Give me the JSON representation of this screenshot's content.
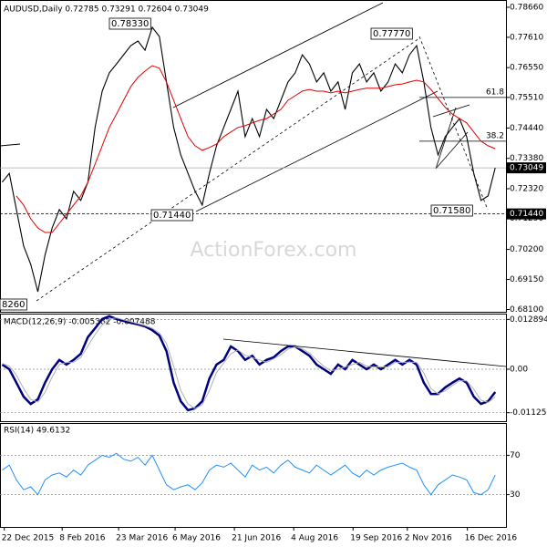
{
  "chart_data": [
    {
      "type": "line",
      "title": "AUDUSD,Daily  0.72785 0.73291 0.72604 0.73049",
      "watermark": "ActionForex.com",
      "xlim": [
        -0.3,
        70.5
      ],
      "xticks": [
        {
          "value": 0.3,
          "label": "22 Dec 2015"
        },
        {
          "value": 8.4,
          "label": "8 Feb 2016"
        },
        {
          "value": 16.3,
          "label": "23 Mar 2016"
        },
        {
          "value": 24.2,
          "label": "6 May 2016"
        },
        {
          "value": 32.5,
          "label": "21 Jun 2016"
        },
        {
          "value": 40.8,
          "label": "4 Aug 2016"
        },
        {
          "value": 49.1,
          "label": "19 Sep 2016"
        },
        {
          "value": 56.7,
          "label": "2 Nov 2016"
        },
        {
          "value": 65.1,
          "label": "16 Dec 2016"
        }
      ],
      "ylim": [
        0.6802,
        0.7885
      ],
      "yticks": [
        {
          "value": 0.7866,
          "label": "0.78660"
        },
        {
          "value": 0.7761,
          "label": "0.77610"
        },
        {
          "value": 0.7655,
          "label": "0.76550"
        },
        {
          "value": 0.7551,
          "label": "0.75510"
        },
        {
          "value": 0.7444,
          "label": "0.74440"
        },
        {
          "value": 0.7338,
          "label": "0.73380"
        },
        {
          "value": 0.7232,
          "label": "0.72320"
        },
        {
          "value": 0.7129,
          "label": "0.71290"
        },
        {
          "value": 0.702,
          "label": "0.70200"
        },
        {
          "value": 0.6915,
          "label": "0.69150"
        },
        {
          "value": 0.681,
          "label": "0.68100"
        }
      ],
      "current_price": 0.73049,
      "support": {
        "value": 0.7144,
        "label": "0.71440"
      },
      "levels": [
        {
          "label": "61.8",
          "value": 0.7551
        },
        {
          "label": "38.2",
          "value": 0.7398
        }
      ],
      "annotations": [
        "0.78330",
        "0.77770",
        "0.71440",
        "0.71580",
        "8260"
      ],
      "series": [
        {
          "color": "#000000",
          "values": [
            0.7255,
            0.7286,
            0.7159,
            0.7032,
            0.6968,
            0.6872,
            0.7,
            0.7095,
            0.7159,
            0.7127,
            0.7223,
            0.7191,
            0.7255,
            0.7446,
            0.7573,
            0.7637,
            0.7668,
            0.77,
            0.7732,
            0.7748,
            0.7716,
            0.7796,
            0.7764,
            0.7605,
            0.7446,
            0.735,
            0.7286,
            0.7223,
            0.7175,
            0.7286,
            0.7382,
            0.7446,
            0.7509,
            0.7573,
            0.7414,
            0.7477,
            0.7414,
            0.7509,
            0.7477,
            0.7541,
            0.7605,
            0.7637,
            0.77,
            0.7668,
            0.7605,
            0.7637,
            0.7573,
            0.7605,
            0.7509,
            0.7637,
            0.7668,
            0.7605,
            0.7637,
            0.7573,
            0.7605,
            0.7668,
            0.7637,
            0.77,
            0.7732,
            0.7605,
            0.7446,
            0.735,
            0.7414,
            0.7446,
            0.7477,
            0.7414,
            0.7286,
            0.7191,
            0.7207,
            0.7305
          ]
        },
        {
          "color": "#e00000",
          "values": [
            null,
            null,
            0.7207,
            0.7175,
            0.7127,
            0.7095,
            0.7079,
            0.7079,
            0.7111,
            0.7143,
            0.7175,
            0.7207,
            0.7255,
            0.7318,
            0.7382,
            0.7446,
            0.7493,
            0.7541,
            0.7589,
            0.7621,
            0.7643,
            0.7662,
            0.7653,
            0.7605,
            0.7541,
            0.7477,
            0.7414,
            0.7382,
            0.7366,
            0.7376,
            0.7388,
            0.7414,
            0.743,
            0.7446,
            0.7452,
            0.7462,
            0.7471,
            0.7477,
            0.7493,
            0.7509,
            0.7541,
            0.7557,
            0.7573,
            0.7579,
            0.7573,
            0.7573,
            0.7567,
            0.7573,
            0.7567,
            0.7573,
            0.7579,
            0.7583,
            0.7583,
            0.7583,
            0.7589,
            0.7595,
            0.7598,
            0.7605,
            0.7611,
            0.7605,
            0.7579,
            0.7547,
            0.7516,
            0.7493,
            0.7477,
            0.7462,
            0.743,
            0.7398,
            0.7382,
            0.7372
          ]
        }
      ]
    },
    {
      "type": "line",
      "title": "MACD(12,26,9) -0.005382 -0.007488",
      "ylim": [
        -0.01345,
        0.01416
      ],
      "yticks": [
        0.012894,
        {
          "value": 0,
          "label": "0.00"
        },
        -0.011253
      ],
      "series": [
        {
          "color": "#000080",
          "values": [
            0.0012,
            0,
            -0.0035,
            -0.0071,
            -0.009,
            -0.0078,
            -0.0035,
            0,
            0.0024,
            0.0012,
            0.0024,
            0.004,
            0.0083,
            0.0106,
            0.013,
            0.0137,
            0.013,
            0.0125,
            0.012,
            0.0116,
            0.0111,
            0.0101,
            0.0087,
            0.0047,
            -0.0035,
            -0.0083,
            -0.0106,
            -0.0101,
            -0.0083,
            -0.0024,
            0.0012,
            0.0024,
            0.0059,
            0.0047,
            0.0024,
            0.0035,
            0.0012,
            0.0024,
            0.0031,
            0.0047,
            0.0059,
            0.0059,
            0.0047,
            0.0035,
            0.0012,
            0,
            -0.0012,
            0.0012,
            0,
            0.0024,
            0.0012,
            0,
            0.0012,
            0,
            0.0012,
            0.0024,
            0.0012,
            0.0024,
            0.0012,
            -0.0035,
            -0.0064,
            -0.0064,
            -0.0047,
            -0.0035,
            -0.0024,
            -0.0035,
            -0.0071,
            -0.009,
            -0.0083,
            -0.0059
          ]
        },
        {
          "color": "#b0b0b0",
          "values": [
            0.0015,
            0.0008,
            -0.0015,
            -0.005,
            -0.0078,
            -0.0085,
            -0.006,
            -0.002,
            0.0012,
            0.0018,
            0.0018,
            0.003,
            0.006,
            0.009,
            0.0115,
            0.013,
            0.0133,
            0.0128,
            0.0123,
            0.0118,
            0.0113,
            0.0106,
            0.0094,
            0.0067,
            0.0008,
            -0.0055,
            -0.009,
            -0.0102,
            -0.0092,
            -0.0055,
            -0.0008,
            0.0016,
            0.004,
            0.005,
            0.0036,
            0.003,
            0.0024,
            0.0018,
            0.0027,
            0.0038,
            0.0052,
            0.0058,
            0.0053,
            0.0042,
            0.0024,
            0.0008,
            -0.0004,
            0,
            0.0006,
            0.0012,
            0.0018,
            0.0008,
            0.0006,
            0.0006,
            0.0006,
            0.0018,
            0.0018,
            0.0018,
            0.0018,
            -0.001,
            -0.005,
            -0.0064,
            -0.0056,
            -0.0042,
            -0.003,
            -0.003,
            -0.0052,
            -0.008,
            -0.0086,
            -0.0072
          ]
        }
      ]
    },
    {
      "type": "line",
      "title": "RSI(14) 49.6132",
      "ylim": [
        0,
        100
      ],
      "yticks": [
        70,
        30
      ],
      "series": [
        {
          "color": "#1e90ff",
          "values": [
            55,
            60,
            45,
            35,
            38,
            30,
            45,
            50,
            52,
            48,
            55,
            50,
            60,
            65,
            70,
            68,
            72,
            66,
            64,
            68,
            60,
            70,
            55,
            40,
            35,
            38,
            40,
            35,
            42,
            55,
            60,
            58,
            62,
            55,
            48,
            60,
            55,
            58,
            52,
            60,
            65,
            58,
            55,
            52,
            60,
            55,
            50,
            55,
            60,
            52,
            48,
            55,
            50,
            55,
            58,
            60,
            62,
            58,
            55,
            40,
            30,
            40,
            45,
            50,
            48,
            45,
            32,
            30,
            35,
            50
          ]
        }
      ]
    }
  ]
}
